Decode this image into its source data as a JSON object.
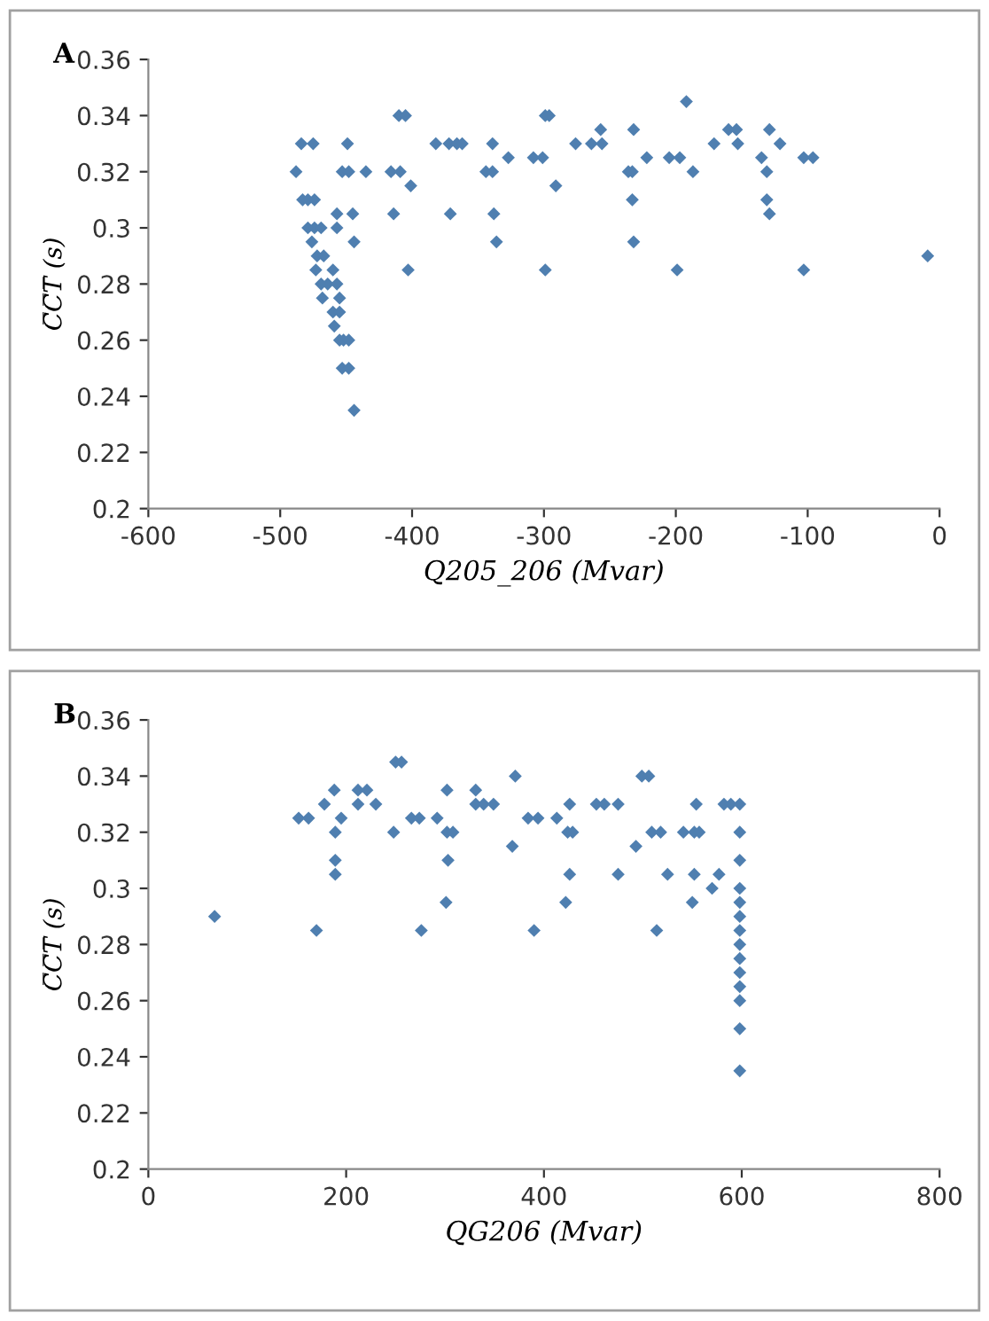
{
  "chart_data": [
    {
      "type": "scatter",
      "title": "A",
      "xlabel": "Q205_206 (Mvar)",
      "ylabel": "C̅C̅T̅ (s)",
      "marker": "diamond",
      "grid": false,
      "legend": false,
      "xlim": [
        -600,
        0
      ],
      "xticks": [
        -600,
        -500,
        -400,
        -300,
        -200,
        -100,
        0
      ],
      "ylim": [
        0.2,
        0.36
      ],
      "yticks": [
        0.2,
        0.22,
        0.24,
        0.26,
        0.28,
        0.3,
        0.32,
        0.34,
        0.36
      ],
      "series": [
        {
          "color": "#4f7fb0",
          "x": [
            -192,
            -410,
            -405,
            -299,
            -296,
            -257,
            -232,
            -160,
            -154,
            -129,
            -484,
            -475,
            -449,
            -382,
            -372,
            -366,
            -362,
            -339,
            -276,
            -264,
            -256,
            -171,
            -153,
            -121,
            -327,
            -308,
            -301,
            -222,
            -205,
            -197,
            -135,
            -103,
            -96,
            -488,
            -453,
            -448,
            -435,
            -416,
            -409,
            -344,
            -339,
            -236,
            -233,
            -187,
            -131,
            -401,
            -291,
            -483,
            -479,
            -474,
            -233,
            -131,
            -457,
            -445,
            -414,
            -371,
            -338,
            -129,
            -479,
            -474,
            -469,
            -457,
            -476,
            -444,
            -336,
            -232,
            -472,
            -467,
            -9,
            -473,
            -460,
            -403,
            -299,
            -199,
            -103,
            -469,
            -464,
            -457,
            -468,
            -455,
            -460,
            -455,
            -459,
            -455,
            -452,
            -448,
            -453,
            -448,
            -444
          ],
          "values": [
            0.345,
            0.34,
            0.34,
            0.34,
            0.34,
            0.335,
            0.335,
            0.335,
            0.335,
            0.335,
            0.33,
            0.33,
            0.33,
            0.33,
            0.33,
            0.33,
            0.33,
            0.33,
            0.33,
            0.33,
            0.33,
            0.33,
            0.33,
            0.33,
            0.325,
            0.325,
            0.325,
            0.325,
            0.325,
            0.325,
            0.325,
            0.325,
            0.325,
            0.32,
            0.32,
            0.32,
            0.32,
            0.32,
            0.32,
            0.32,
            0.32,
            0.32,
            0.32,
            0.32,
            0.32,
            0.315,
            0.315,
            0.31,
            0.31,
            0.31,
            0.31,
            0.31,
            0.305,
            0.305,
            0.305,
            0.305,
            0.305,
            0.305,
            0.3,
            0.3,
            0.3,
            0.3,
            0.295,
            0.295,
            0.295,
            0.295,
            0.29,
            0.29,
            0.29,
            0.285,
            0.285,
            0.285,
            0.285,
            0.285,
            0.285,
            0.28,
            0.28,
            0.28,
            0.275,
            0.275,
            0.27,
            0.27,
            0.265,
            0.26,
            0.26,
            0.26,
            0.25,
            0.25,
            0.235
          ]
        }
      ]
    },
    {
      "type": "scatter",
      "title": "B",
      "xlabel": "QG206 (Mvar)",
      "ylabel": "C̅C̅T̅ (s)",
      "marker": "diamond",
      "grid": false,
      "legend": false,
      "xlim": [
        0,
        800
      ],
      "xticks": [
        0,
        200,
        400,
        600,
        800
      ],
      "ylim": [
        0.2,
        0.36
      ],
      "yticks": [
        0.2,
        0.22,
        0.24,
        0.26,
        0.28,
        0.3,
        0.32,
        0.34,
        0.36
      ],
      "series": [
        {
          "color": "#4f7fb0",
          "x": [
            67,
            152,
            162,
            195,
            266,
            274,
            292,
            384,
            394,
            413,
            178,
            212,
            230,
            331,
            339,
            349,
            426,
            453,
            461,
            475,
            554,
            582,
            589,
            598,
            188,
            212,
            221,
            302,
            331,
            189,
            248,
            302,
            308,
            424,
            429,
            509,
            518,
            541,
            552,
            557,
            598,
            250,
            256,
            371,
            499,
            506,
            368,
            493,
            189,
            303,
            598,
            189,
            426,
            475,
            525,
            552,
            577,
            570,
            598,
            301,
            422,
            550,
            598,
            170,
            276,
            390,
            514,
            598,
            598,
            598,
            598,
            598,
            598,
            598,
            598,
            598
          ],
          "values": [
            0.29,
            0.325,
            0.325,
            0.325,
            0.325,
            0.325,
            0.325,
            0.325,
            0.325,
            0.325,
            0.33,
            0.33,
            0.33,
            0.33,
            0.33,
            0.33,
            0.33,
            0.33,
            0.33,
            0.33,
            0.33,
            0.33,
            0.33,
            0.33,
            0.335,
            0.335,
            0.335,
            0.335,
            0.335,
            0.32,
            0.32,
            0.32,
            0.32,
            0.32,
            0.32,
            0.32,
            0.32,
            0.32,
            0.32,
            0.32,
            0.32,
            0.345,
            0.345,
            0.34,
            0.34,
            0.34,
            0.315,
            0.315,
            0.31,
            0.31,
            0.31,
            0.305,
            0.305,
            0.305,
            0.305,
            0.305,
            0.305,
            0.3,
            0.3,
            0.295,
            0.295,
            0.295,
            0.295,
            0.285,
            0.285,
            0.285,
            0.285,
            0.285,
            0.29,
            0.28,
            0.275,
            0.27,
            0.265,
            0.26,
            0.25,
            0.235
          ]
        }
      ]
    }
  ]
}
